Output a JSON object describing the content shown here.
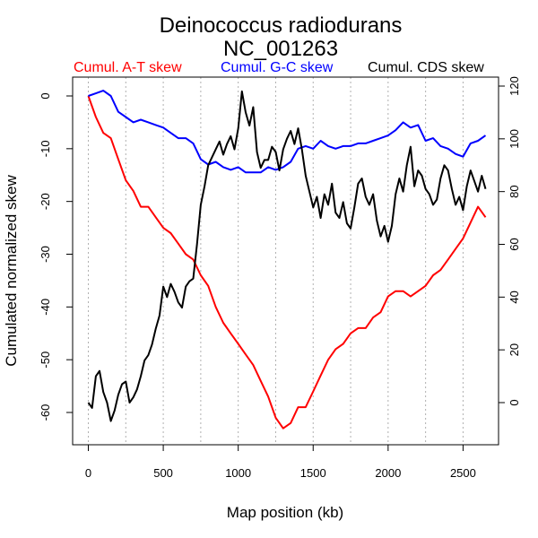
{
  "chart_data": {
    "type": "line",
    "title": "Deinococcus radiodurans",
    "subtitle": "NC_001263",
    "xlabel": "Map position (kb)",
    "ylabel": "Cumulated normalized skew",
    "xlim": [
      0,
      2650
    ],
    "ylim_left": [
      -64,
      2
    ],
    "ylim_right": [
      -10,
      122
    ],
    "x_ticks": [
      "0",
      "500",
      "1000",
      "1500",
      "2000",
      "2500"
    ],
    "y_ticks_left": [
      "0",
      "-10",
      "-20",
      "-30",
      "-40",
      "-50",
      "-60"
    ],
    "y_ticks_right": [
      "0",
      "20",
      "40",
      "60",
      "80",
      "100",
      "120"
    ],
    "vertical_gridlines": [
      0,
      250,
      500,
      750,
      1000,
      1250,
      1500,
      1750,
      2000,
      2250,
      2500
    ],
    "series": [
      {
        "name": "Cumul. A-T skew",
        "axis": "left",
        "color": "#ff0000",
        "x": [
          0,
          50,
          100,
          150,
          200,
          250,
          300,
          350,
          400,
          450,
          500,
          550,
          600,
          650,
          700,
          750,
          800,
          850,
          900,
          950,
          1000,
          1050,
          1100,
          1150,
          1200,
          1250,
          1300,
          1350,
          1400,
          1450,
          1500,
          1550,
          1600,
          1650,
          1700,
          1750,
          1800,
          1850,
          1900,
          1950,
          2000,
          2050,
          2100,
          2150,
          2200,
          2250,
          2300,
          2350,
          2400,
          2450,
          2500,
          2550,
          2600,
          2650
        ],
        "values": [
          0,
          -4,
          -7,
          -8,
          -12,
          -16,
          -18,
          -21,
          -21,
          -23,
          -25,
          -26,
          -28,
          -30,
          -31,
          -34,
          -36,
          -40,
          -43,
          -45,
          -47,
          -49,
          -51,
          -54,
          -57,
          -61,
          -63,
          -62,
          -59,
          -59,
          -56,
          -53,
          -50,
          -48,
          -47,
          -45,
          -44,
          -44,
          -42,
          -41,
          -38,
          -37,
          -37,
          -38,
          -37,
          -36,
          -34,
          -33,
          -31,
          -29,
          -27,
          -24,
          -21,
          -23
        ]
      },
      {
        "name": "Cumul. G-C skew",
        "axis": "left",
        "color": "#0000ff",
        "x": [
          0,
          50,
          100,
          150,
          200,
          250,
          300,
          350,
          400,
          450,
          500,
          550,
          600,
          650,
          700,
          750,
          800,
          850,
          900,
          950,
          1000,
          1050,
          1100,
          1150,
          1200,
          1250,
          1300,
          1350,
          1400,
          1450,
          1500,
          1550,
          1600,
          1650,
          1700,
          1750,
          1800,
          1850,
          1900,
          1950,
          2000,
          2050,
          2100,
          2150,
          2200,
          2250,
          2300,
          2350,
          2400,
          2450,
          2500,
          2550,
          2600,
          2650
        ],
        "values": [
          0,
          0.5,
          1,
          0,
          -3,
          -4,
          -5,
          -4.5,
          -5,
          -5.5,
          -6,
          -7,
          -8,
          -8,
          -9,
          -12,
          -13,
          -12.5,
          -13.5,
          -14,
          -13.5,
          -14.5,
          -14.5,
          -14.5,
          -13.5,
          -14,
          -13.5,
          -12.5,
          -10,
          -9.5,
          -10,
          -8.5,
          -9.5,
          -10,
          -9.5,
          -9.5,
          -9,
          -9,
          -8.5,
          -8,
          -7.5,
          -6.5,
          -5,
          -6,
          -5.5,
          -8.5,
          -8,
          -9.5,
          -10,
          -11,
          -11.5,
          -9,
          -8.5,
          -7.5
        ]
      },
      {
        "name": "Cumul. CDS skew",
        "axis": "right",
        "color": "#000000",
        "x": [
          0,
          25,
          50,
          75,
          100,
          125,
          150,
          175,
          200,
          225,
          250,
          275,
          300,
          325,
          350,
          375,
          400,
          425,
          450,
          475,
          500,
          525,
          550,
          575,
          600,
          625,
          650,
          675,
          700,
          725,
          750,
          775,
          800,
          825,
          850,
          875,
          900,
          925,
          950,
          975,
          1000,
          1025,
          1050,
          1075,
          1100,
          1125,
          1150,
          1175,
          1200,
          1225,
          1250,
          1275,
          1300,
          1325,
          1350,
          1375,
          1400,
          1425,
          1450,
          1475,
          1500,
          1525,
          1550,
          1575,
          1600,
          1625,
          1650,
          1675,
          1700,
          1725,
          1750,
          1775,
          1800,
          1825,
          1850,
          1875,
          1900,
          1925,
          1950,
          1975,
          2000,
          2025,
          2050,
          2075,
          2100,
          2125,
          2150,
          2175,
          2200,
          2225,
          2250,
          2275,
          2300,
          2325,
          2350,
          2375,
          2400,
          2425,
          2450,
          2475,
          2500,
          2525,
          2550,
          2575,
          2600,
          2625,
          2650
        ],
        "values": [
          0,
          -2,
          10,
          12,
          4,
          0,
          -7,
          -3,
          3,
          7,
          8,
          0,
          2,
          5,
          10,
          16,
          18,
          22,
          28,
          33,
          44,
          40,
          45,
          42,
          38,
          36,
          44,
          46,
          47,
          60,
          75,
          82,
          90,
          93,
          96,
          99,
          94,
          98,
          101,
          96,
          104,
          118,
          110,
          105,
          112,
          95,
          89,
          92,
          92,
          97,
          95,
          88,
          96,
          100,
          103,
          98,
          104,
          96,
          86,
          80,
          74,
          78,
          70,
          79,
          75,
          83,
          72,
          70,
          76,
          68,
          66,
          74,
          83,
          85,
          78,
          75,
          79,
          69,
          63,
          67,
          61,
          67,
          79,
          85,
          80,
          90,
          97,
          82,
          88,
          86,
          81,
          79,
          75,
          77,
          85,
          90,
          88,
          81,
          75,
          78,
          73,
          82,
          88,
          84,
          80,
          86,
          81
        ]
      }
    ]
  }
}
